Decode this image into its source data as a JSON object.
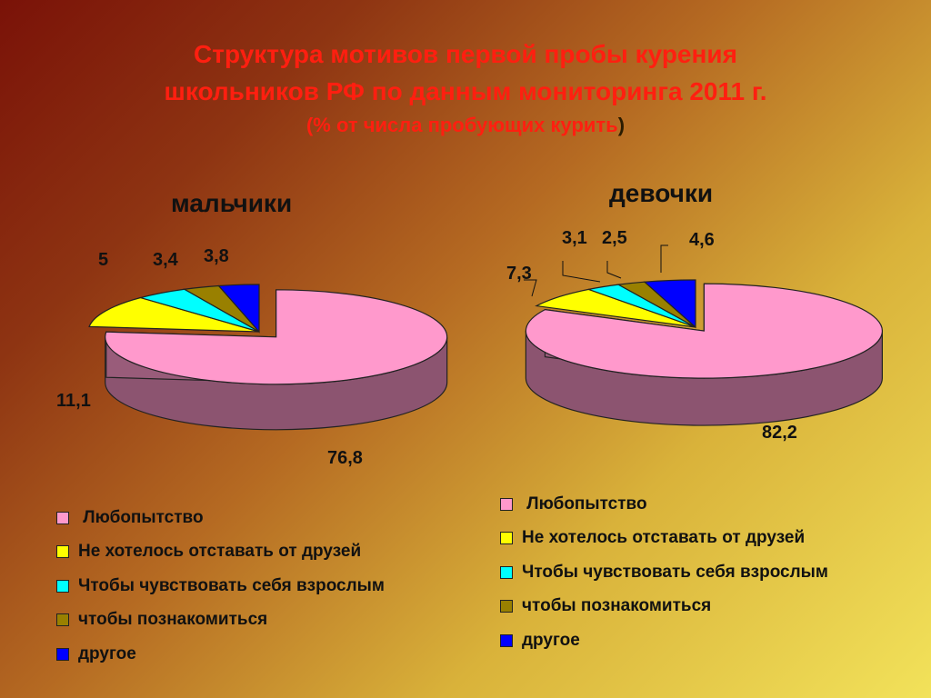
{
  "title": {
    "line1": "Структура мотивов первой пробы курения",
    "line2": "школьников РФ по данным мониторинга 2011 г.",
    "line3_main": "(% от числа пробующих курить",
    "line3_close": ")"
  },
  "colors": {
    "curiosity": "#ff99cc",
    "friends": "#ffff00",
    "adult": "#00ffff",
    "meet": "#998000",
    "other": "#0000ff"
  },
  "chart_data": [
    {
      "type": "pie",
      "title": "мальчики",
      "categories": [
        "Любопытство",
        "Не хотелось отставать от друзей",
        "Чтобы чувствовать себя взрослым",
        "чтобы познакомиться",
        "другое"
      ],
      "values": [
        76.8,
        11.1,
        5,
        3.4,
        3.8
      ],
      "labels": [
        "76,8",
        "11,1",
        "5",
        "3,4",
        "3,8"
      ],
      "exploded": "Любопытство",
      "legend": "bottom"
    },
    {
      "type": "pie",
      "title": "девочки",
      "categories": [
        "Любопытство",
        "Не хотелось отставать от друзей",
        "Чтобы чувствовать себя взрослым",
        "чтобы познакомиться",
        "другое"
      ],
      "values": [
        82.2,
        7.3,
        3.1,
        2.5,
        4.6
      ],
      "labels": [
        "82,2",
        "7,3",
        "3,1",
        "2,5",
        "4,6"
      ],
      "exploded": "Любопытство",
      "legend": "bottom"
    }
  ],
  "legends": {
    "boys": [
      "Любопытство",
      "Не хотелось отставать от друзей",
      "Чтобы чувствовать себя взрослым",
      "чтобы познакомиться",
      "другое"
    ],
    "girls": [
      "Любопытство",
      "Не хотелось отставать от друзей",
      "Чтобы чувствовать себя взрослым",
      "чтобы познакомиться",
      "другое"
    ]
  }
}
